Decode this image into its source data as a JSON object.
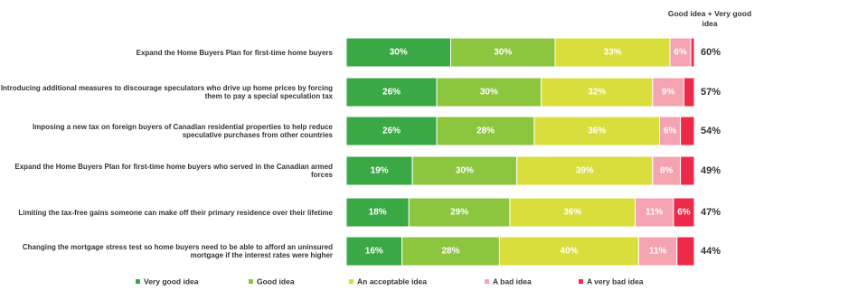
{
  "chart_data": {
    "type": "stacked-bar-horizontal",
    "categories": [
      "Expand the Home Buyers Plan for first-time home buyers",
      "Introducing additional measures to discourage speculators who drive up home prices by forcing them to pay a special speculation tax",
      "Imposing a new tax on foreign buyers of Canadian residential properties to help reduce speculative purchases from other countries",
      "Expand the Home Buyers Plan for first-time home buyers who served in the Canadian armed forces",
      "Limiting the tax-free gains someone can make off their primary residence over their lifetime",
      "Changing the mortgage stress test so home buyers need to be able to afford an uninsured mortgage if the interest rates were higher"
    ],
    "xlim": [
      0,
      100
    ],
    "series": [
      {
        "name": "Very good idea",
        "color": "#3aa845",
        "values": [
          30,
          26,
          26,
          19,
          18,
          16
        ],
        "value_labels": [
          "30%",
          "26%",
          "26%",
          "19%",
          "18%",
          "16%"
        ]
      },
      {
        "name": "Good idea",
        "color": "#8cc63f",
        "values": [
          30,
          30,
          28,
          30,
          29,
          28
        ],
        "value_labels": [
          "30%",
          "30%",
          "28%",
          "30%",
          "29%",
          "28%"
        ]
      },
      {
        "name": "An acceptable idea",
        "color": "#d9de3c",
        "values": [
          33,
          32,
          36,
          39,
          36,
          40
        ],
        "value_labels": [
          "33%",
          "32%",
          "36%",
          "39%",
          "36%",
          "40%"
        ]
      },
      {
        "name": "A bad idea",
        "color": "#f4a3b0",
        "values": [
          6,
          9,
          6,
          8,
          11,
          11
        ],
        "value_labels": [
          "6%",
          "9%",
          "6%",
          "8%",
          "11%",
          "11%"
        ]
      },
      {
        "name": "A very bad idea",
        "color": "#ee2a4a",
        "values": [
          1,
          3,
          4,
          4,
          6,
          5
        ],
        "value_labels": [
          null,
          null,
          null,
          null,
          "6%",
          null
        ]
      }
    ],
    "totals": {
      "title": "Good idea + Very good idea",
      "values": [
        60,
        57,
        54,
        49,
        47,
        44
      ],
      "value_labels": [
        "60%",
        "57%",
        "54%",
        "49%",
        "47%",
        "44%"
      ]
    }
  }
}
